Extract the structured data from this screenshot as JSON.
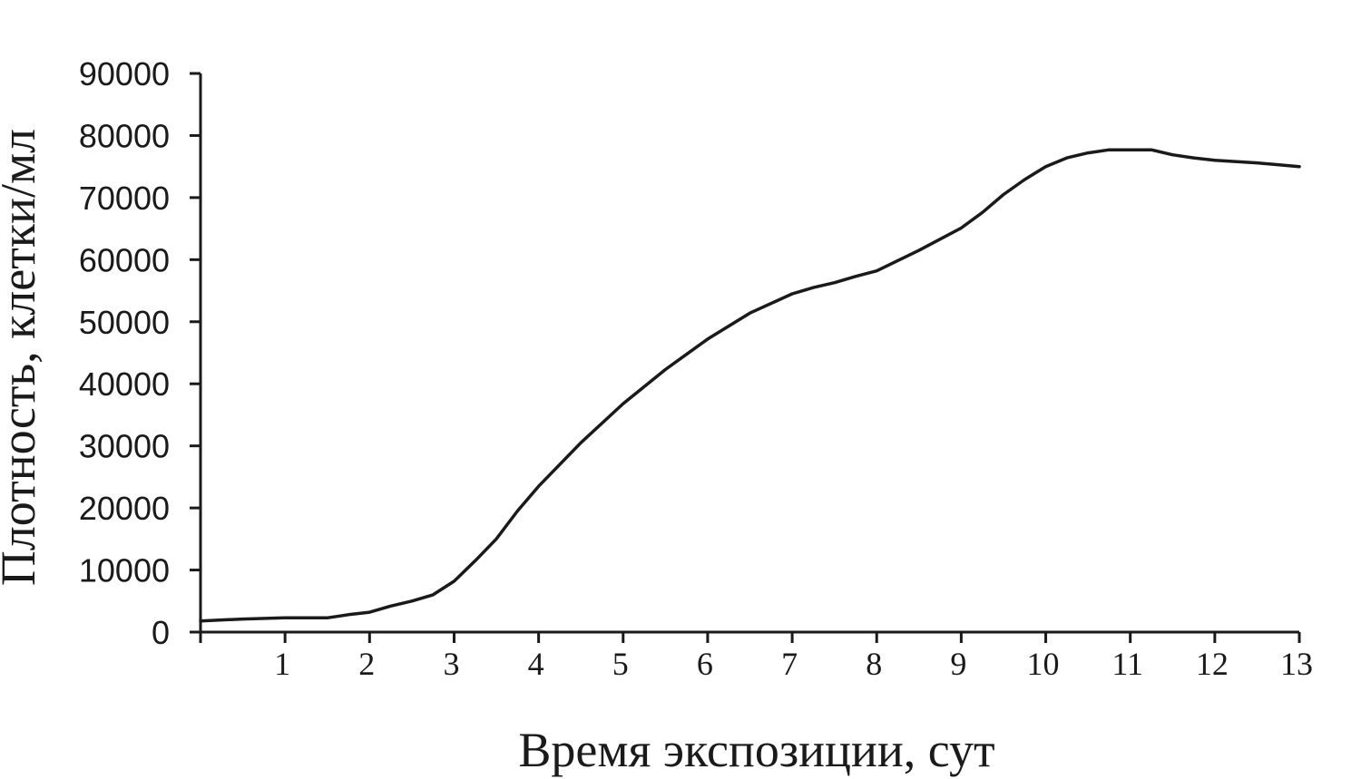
{
  "chart_data": {
    "type": "line",
    "xlabel": "Время экспозиции, сут",
    "ylabel": "Плотность, клетки/мл",
    "xlim": [
      0,
      13
    ],
    "ylim": [
      0,
      90000
    ],
    "x_ticks": [
      1,
      2,
      3,
      4,
      5,
      6,
      7,
      8,
      9,
      10,
      11,
      12,
      13
    ],
    "y_ticks": [
      0,
      10000,
      20000,
      30000,
      40000,
      50000,
      60000,
      70000,
      80000,
      90000
    ],
    "grid": false,
    "legend": "none",
    "series": [
      {
        "color": "#1a1a1a",
        "x": [
          0,
          0.5,
          1,
          1.5,
          1.75,
          2,
          2.25,
          2.5,
          2.75,
          3,
          3.25,
          3.5,
          3.75,
          4,
          4.5,
          5,
          5.5,
          6,
          6.5,
          7,
          7.25,
          7.5,
          7.75,
          8,
          8.5,
          9,
          9.25,
          9.5,
          9.75,
          10,
          10.25,
          10.5,
          10.75,
          11,
          11.25,
          11.5,
          11.75,
          12,
          12.5,
          13
        ],
        "y": [
          1800,
          2100,
          2300,
          2300,
          2800,
          3200,
          4200,
          5000,
          6000,
          8200,
          11500,
          15000,
          19500,
          23500,
          30500,
          36800,
          42300,
          47200,
          51400,
          54500,
          55500,
          56300,
          57300,
          58200,
          61500,
          65100,
          67600,
          70500,
          72900,
          75000,
          76400,
          77200,
          77700,
          77700,
          77700,
          76900,
          76400,
          76000,
          75600,
          75000
        ]
      }
    ]
  }
}
